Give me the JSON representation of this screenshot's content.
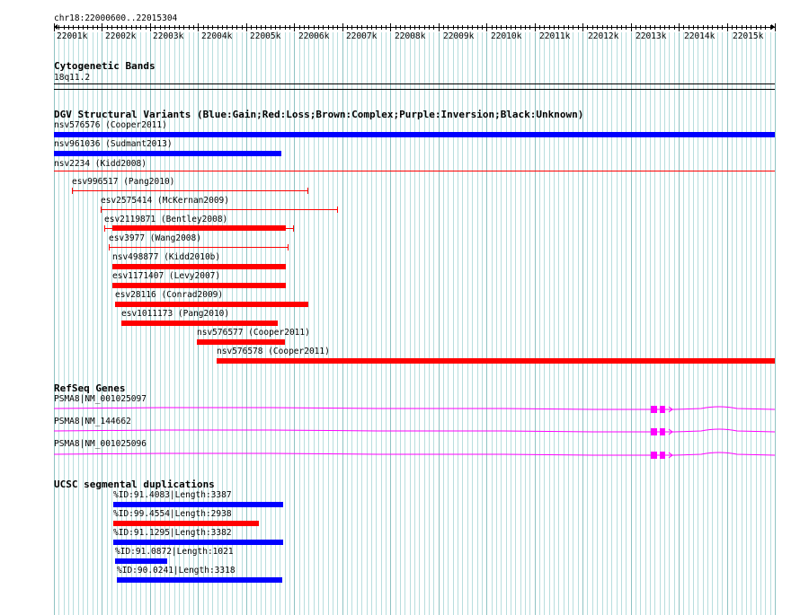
{
  "locus": "chr18:22000600..22015304",
  "ruler_ticks": [
    "22001k",
    "22002k",
    "22003k",
    "22004k",
    "22005k",
    "22006k",
    "22007k",
    "22008k",
    "22009k",
    "22010k",
    "22011k",
    "22012k",
    "22013k",
    "22014k",
    "22015k"
  ],
  "cytoband": {
    "title": "Cytogenetic Bands",
    "band": "18q11.2"
  },
  "dgv": {
    "title": "DGV Structural Variants (Blue:Gain;Red:Loss;Brown:Complex;Purple:Inversion;Black:Unknown)",
    "items": [
      {
        "label": "nsv576576 (Cooper2011)",
        "type": "gain"
      },
      {
        "label": "nsv961036 (Sudmant2013)",
        "type": "gain"
      },
      {
        "label": "nsv2234 (Kidd2008)",
        "type": "loss"
      },
      {
        "label": "esv996517 (Pang2010)",
        "type": "loss"
      },
      {
        "label": "esv2575414 (McKernan2009)",
        "type": "loss"
      },
      {
        "label": "esv2119871 (Bentley2008)",
        "type": "loss"
      },
      {
        "label": "esv3977 (Wang2008)",
        "type": "loss"
      },
      {
        "label": "nsv498877 (Kidd2010b)",
        "type": "loss"
      },
      {
        "label": "esv1171407 (Levy2007)",
        "type": "loss"
      },
      {
        "label": "esv28116 (Conrad2009)",
        "type": "loss"
      },
      {
        "label": "esv1011173 (Pang2010)",
        "type": "loss"
      },
      {
        "label": "nsv576577 (Cooper2011)",
        "type": "loss"
      },
      {
        "label": "nsv576578 (Cooper2011)",
        "type": "loss"
      }
    ]
  },
  "refseq": {
    "title": "RefSeq Genes",
    "genes": [
      {
        "label": "PSMA8|NM_001025097"
      },
      {
        "label": "PSMA8|NM_144662"
      },
      {
        "label": "PSMA8|NM_001025096"
      }
    ]
  },
  "segdups": {
    "title": "UCSC segmental duplications",
    "items": [
      {
        "label": "%ID:91.4083|Length:3387"
      },
      {
        "label": "%ID:99.4554|Length:2938"
      },
      {
        "label": "%ID:91.1295|Length:3382"
      },
      {
        "label": "%ID:91.0872|Length:1021"
      },
      {
        "label": "%ID:90.0241|Length:3318"
      }
    ]
  },
  "colors": {
    "gain": "#0000ff",
    "loss": "#ff0000",
    "gene": "#ff00ff",
    "grid": "#b8dede"
  }
}
